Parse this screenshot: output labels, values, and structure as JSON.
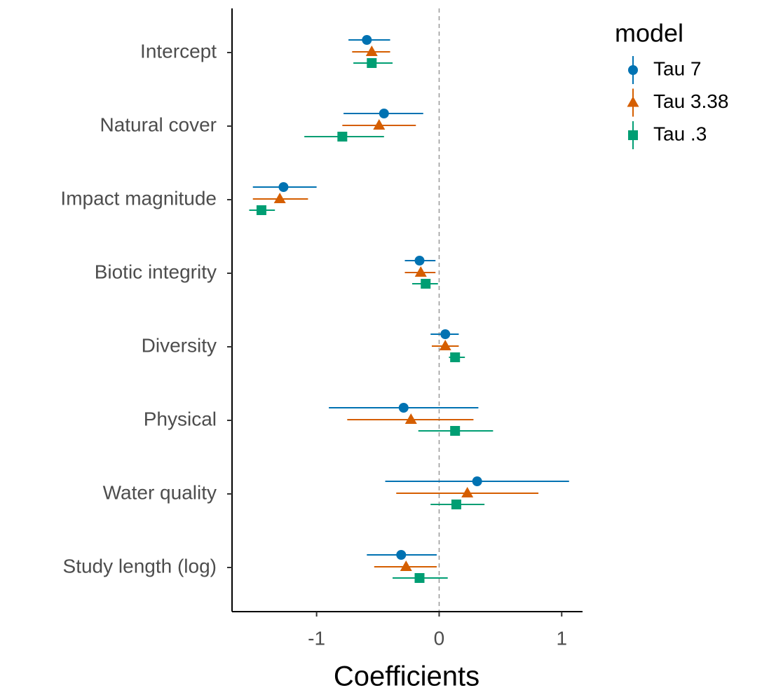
{
  "chart_data": {
    "type": "pointrange",
    "categories": [
      "Intercept",
      "Natural cover",
      "Impact magnitude",
      "Biotic integrity",
      "Diversity",
      "Physical",
      "Water quality",
      "Study length (log)"
    ],
    "series": [
      {
        "name": "Tau 7",
        "color": "#0072B2",
        "marker": "circle",
        "values": [
          -0.59,
          -0.45,
          -1.27,
          -0.16,
          0.05,
          -0.29,
          0.31,
          -0.31
        ],
        "lower": [
          -0.74,
          -0.78,
          -1.52,
          -0.28,
          -0.07,
          -0.9,
          -0.44,
          -0.59
        ],
        "upper": [
          -0.4,
          -0.13,
          -1.0,
          -0.03,
          0.16,
          0.32,
          1.06,
          -0.02
        ]
      },
      {
        "name": "Tau 3.38",
        "color": "#D55E00",
        "marker": "triangle",
        "values": [
          -0.55,
          -0.49,
          -1.3,
          -0.15,
          0.05,
          -0.23,
          0.23,
          -0.27
        ],
        "lower": [
          -0.71,
          -0.79,
          -1.52,
          -0.28,
          -0.06,
          -0.75,
          -0.35,
          -0.53
        ],
        "upper": [
          -0.4,
          -0.19,
          -1.07,
          -0.03,
          0.16,
          0.28,
          0.81,
          -0.02
        ]
      },
      {
        "name": "Tau .3",
        "color": "#009E73",
        "marker": "square",
        "values": [
          -0.55,
          -0.79,
          -1.45,
          -0.11,
          0.13,
          0.13,
          0.14,
          -0.16
        ],
        "lower": [
          -0.7,
          -1.1,
          -1.55,
          -0.22,
          0.08,
          -0.17,
          -0.07,
          -0.38
        ],
        "upper": [
          -0.38,
          -0.45,
          -1.34,
          -0.01,
          0.21,
          0.44,
          0.37,
          0.07
        ]
      }
    ],
    "xlim": [
      -1.69,
      1.17
    ],
    "xticks": [
      -1,
      0,
      1
    ],
    "xlabel": "Coefficients",
    "legend_title": "model",
    "legend": "right",
    "vline": 0
  }
}
